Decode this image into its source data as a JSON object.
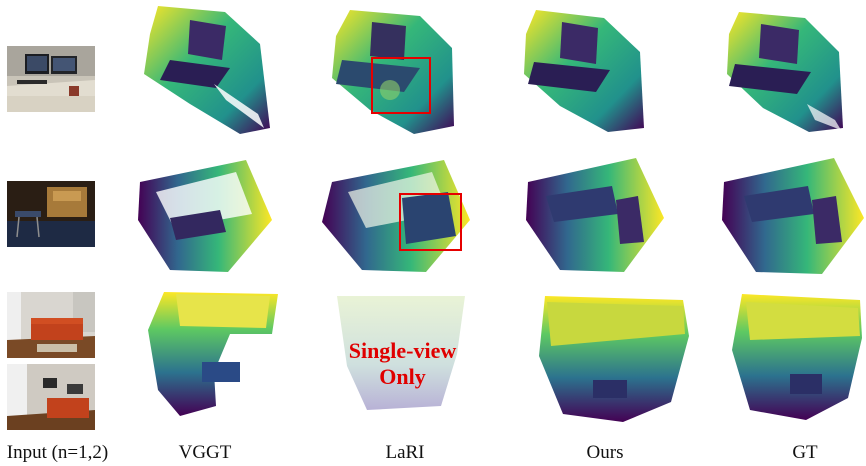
{
  "columns": [
    {
      "id": "input",
      "label": "Input (n=1,2)"
    },
    {
      "id": "vggt",
      "label": "VGGT"
    },
    {
      "id": "lari",
      "label": "LaRI"
    },
    {
      "id": "ours",
      "label": "Ours"
    },
    {
      "id": "gt",
      "label": "GT"
    }
  ],
  "overlay": {
    "line1": "Single-view",
    "line2": "Only"
  },
  "colors": {
    "viridis_dark": "#440154",
    "viridis_mid": "#21918c",
    "viridis_light": "#5ec962",
    "viridis_yellow": "#fde725",
    "highlight_box": "#e60000"
  }
}
